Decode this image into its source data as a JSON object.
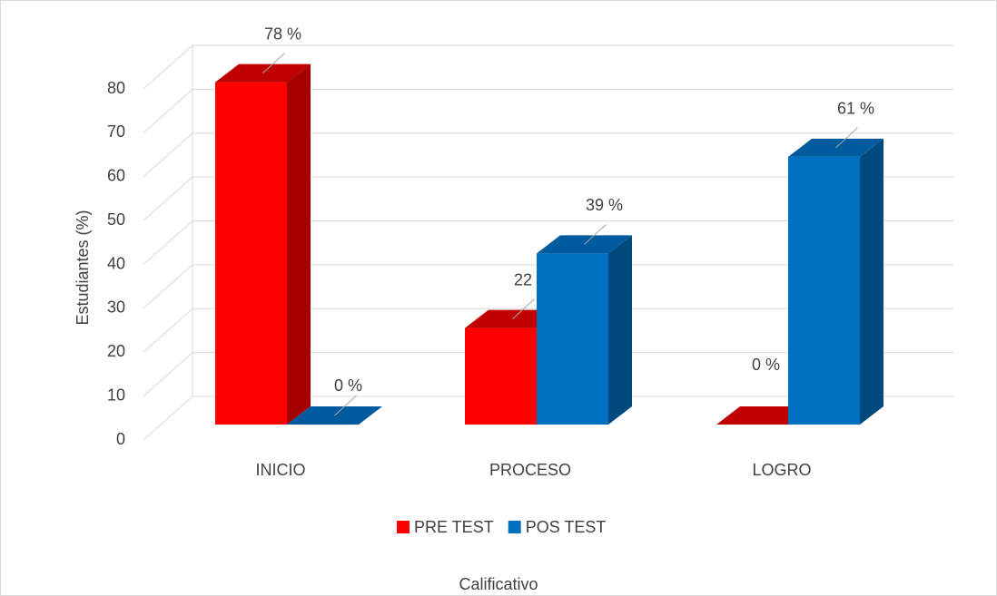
{
  "chart_data": {
    "type": "bar3d",
    "y_label": "Estudiantes (%)",
    "x_label": "Calificativo",
    "categories": [
      "INICIO",
      "PROCESO",
      "LOGRO"
    ],
    "series": [
      {
        "name": "PRE TEST",
        "color": "#ff0000",
        "side": "#a50000",
        "top": "#c00000",
        "values": [
          78,
          22,
          0
        ],
        "value_labels": [
          "78 %",
          "22 %",
          "0 %"
        ]
      },
      {
        "name": "POS TEST",
        "color": "#0070c0",
        "side": "#004a80",
        "top": "#005a9e",
        "values": [
          0,
          39,
          61
        ],
        "value_labels": [
          "0 %",
          "39 %",
          "61 %"
        ]
      }
    ],
    "ylim": [
      0,
      80
    ],
    "yticks": [
      0,
      10,
      20,
      30,
      40,
      50,
      60,
      70,
      80
    ],
    "grid": true,
    "legend": "bottom"
  }
}
